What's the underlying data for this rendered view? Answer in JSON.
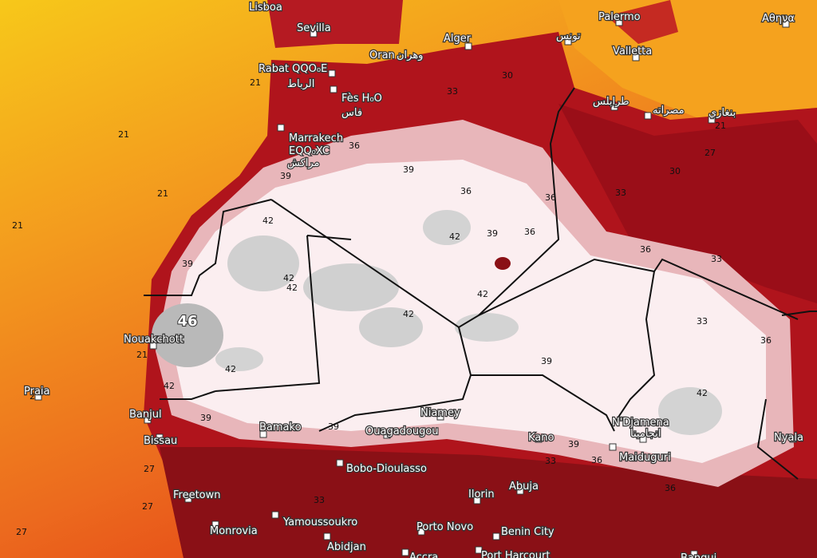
{
  "cities": [
    {
      "name": "Lisboa"
    },
    {
      "name": "Sevilla"
    },
    {
      "name": "Alger"
    },
    {
      "name": "تونس"
    },
    {
      "name": "Palermo"
    },
    {
      "name": "Αθηνα"
    },
    {
      "name": "Valletta"
    },
    {
      "name": "Oran"
    },
    {
      "name": "وهران"
    },
    {
      "name": "Rabat QQO₀E"
    },
    {
      "name": "الرباط"
    },
    {
      "name": "Fès H₀O"
    },
    {
      "name": "فاس"
    },
    {
      "name": "Marrakech"
    },
    {
      "name": "EQQ₀XC"
    },
    {
      "name": "مراكش"
    },
    {
      "name": "طرابلس"
    },
    {
      "name": "مصراته"
    },
    {
      "name": "بنغازي"
    },
    {
      "name": "Nouakchott"
    },
    {
      "name": "Praia"
    },
    {
      "name": "Banjul"
    },
    {
      "name": "Bissau"
    },
    {
      "name": "Bamako"
    },
    {
      "name": "Niamey"
    },
    {
      "name": "Ouagadougou"
    },
    {
      "name": "Kano"
    },
    {
      "name": "N'Djamena"
    },
    {
      "name": "انجامينا"
    },
    {
      "name": "Nyala"
    },
    {
      "name": "Maiduguri"
    },
    {
      "name": "Bobo-Dioulasso"
    },
    {
      "name": "Freetown"
    },
    {
      "name": "Ilorin"
    },
    {
      "name": "Abuja"
    },
    {
      "name": "Monrovia"
    },
    {
      "name": "Yamoussoukro"
    },
    {
      "name": "Porto Novo"
    },
    {
      "name": "Benin City"
    },
    {
      "name": "Abidjan"
    },
    {
      "name": "Accra"
    },
    {
      "name": "Port Harcourt"
    },
    {
      "name": "Bangui"
    }
  ],
  "contour_labels": [
    21,
    21,
    21,
    21,
    21,
    21,
    21,
    27,
    27,
    27,
    27,
    30,
    30,
    33,
    33,
    33,
    33,
    33,
    33,
    36,
    36,
    36,
    36,
    36,
    36,
    36,
    36,
    39,
    39,
    39,
    39,
    39,
    39,
    39,
    39,
    42,
    42,
    42,
    42,
    42,
    42,
    42,
    42,
    42,
    46
  ]
}
